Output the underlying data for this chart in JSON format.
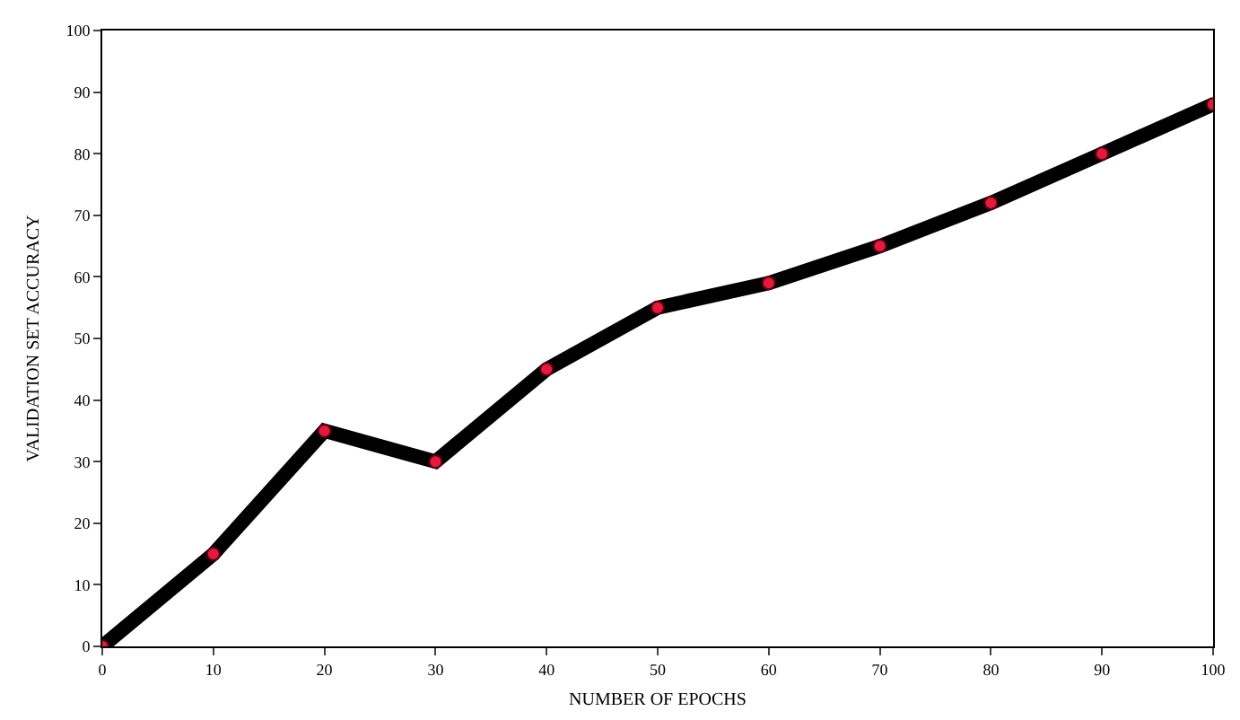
{
  "chart_data": {
    "type": "line",
    "xlabel": "NUMBER OF EPOCHS",
    "ylabel": "VALIDATION SET ACCURACY",
    "x": [
      0,
      10,
      20,
      30,
      40,
      50,
      60,
      70,
      80,
      90,
      100
    ],
    "series": [
      {
        "color": "#000000",
        "colors": [
          "#e8173c",
          "#e8173c",
          "#e8173c",
          "#e8173c",
          "#e8173c",
          "#e8173c",
          "#e8173c",
          "#e8173c",
          "#e8173c",
          "#e8173c",
          "#e8173c"
        ],
        "values": [
          0,
          15,
          35,
          30,
          45,
          55,
          59,
          65,
          72,
          80,
          88
        ]
      }
    ],
    "xlim": [
      0,
      100
    ],
    "xticks": [
      0,
      10,
      20,
      30,
      40,
      50,
      60,
      70,
      80,
      90,
      100
    ],
    "ylim": [
      0,
      100
    ],
    "yticks": [
      0,
      10,
      20,
      30,
      40,
      50,
      60,
      70,
      80,
      90,
      100
    ],
    "marker": "circle",
    "line_style": "solid"
  }
}
